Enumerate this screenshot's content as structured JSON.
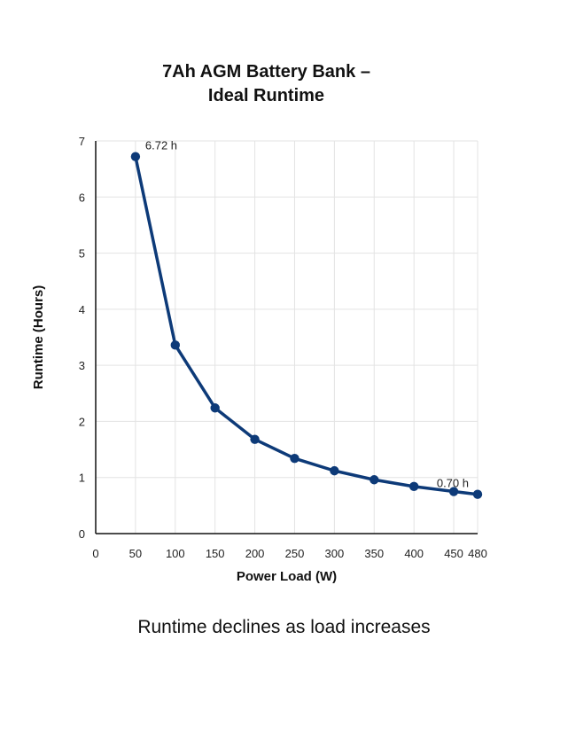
{
  "caption": "Runtime declines as load increases",
  "chart_data": {
    "type": "line",
    "title_lines": [
      "7Ah AGM Battery Bank –",
      "Ideal Runtime"
    ],
    "xlabel": "Power Load (W)",
    "ylabel": "Runtime (Hours)",
    "xlim": [
      0,
      480
    ],
    "ylim": [
      0,
      7
    ],
    "x_ticks": [
      0,
      50,
      100,
      150,
      200,
      250,
      300,
      350,
      400,
      450,
      480
    ],
    "y_ticks": [
      0,
      1,
      2,
      3,
      4,
      5,
      6,
      7
    ],
    "grid": true,
    "x": [
      50,
      100,
      150,
      200,
      250,
      300,
      350,
      400,
      450,
      480
    ],
    "values": [
      6.72,
      3.36,
      2.24,
      1.68,
      1.34,
      1.12,
      0.96,
      0.84,
      0.75,
      0.7
    ],
    "annotations": [
      {
        "x": 50,
        "y": 6.72,
        "text": "6.72 h"
      },
      {
        "x": 480,
        "y": 0.7,
        "text": "0.70 h"
      }
    ],
    "line_color": "#0d3a78",
    "grid_color": "#e3e3e3"
  }
}
